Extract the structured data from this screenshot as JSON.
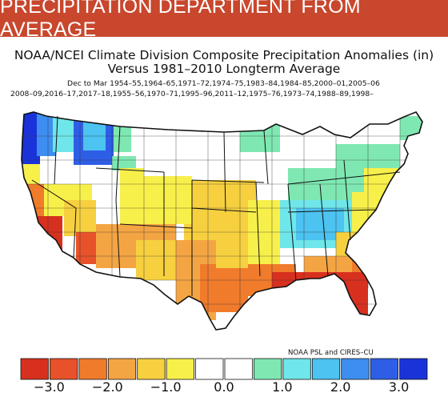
{
  "banner": {
    "title": "PRECIPITATION DEPARTMENT FROM AVERAGE"
  },
  "map": {
    "title_line1": "NOAA/NCEI Climate Division Composite Precipitation Anomalies (in)",
    "title_line2": "Versus 1981–2010 Longterm Average",
    "years_line1": "Dec to Mar  1954–55,1964–65,1971–72,1974–75,1983–84,1984–85,2000–01,2005–06",
    "years_line2": "2008–09,2016–17,2017–18,1955–56,1970–71,1995–96,2011–12,1975–76,1973–74,1988–89,1998–",
    "credit": "NOAA PSL and CIRES–CU",
    "region_label": "Contiguous United States"
  },
  "legend": {
    "colors": [
      "#d7301f",
      "#e8522a",
      "#f07b2b",
      "#f4a543",
      "#f7d040",
      "#f8f04a",
      "#ffffff",
      "#ffffff",
      "#7fe8b2",
      "#6fe6ea",
      "#4cc3f0",
      "#3d8ef0",
      "#2f5ee6",
      "#1a33d9"
    ],
    "tick_labels": [
      "−3.0",
      "−2.0",
      "−1.0",
      "0.0",
      "1.0",
      "2.0",
      "3.0"
    ],
    "tick_values": [
      -3.0,
      -2.0,
      -1.0,
      0.0,
      1.0,
      2.0,
      3.0
    ]
  }
}
